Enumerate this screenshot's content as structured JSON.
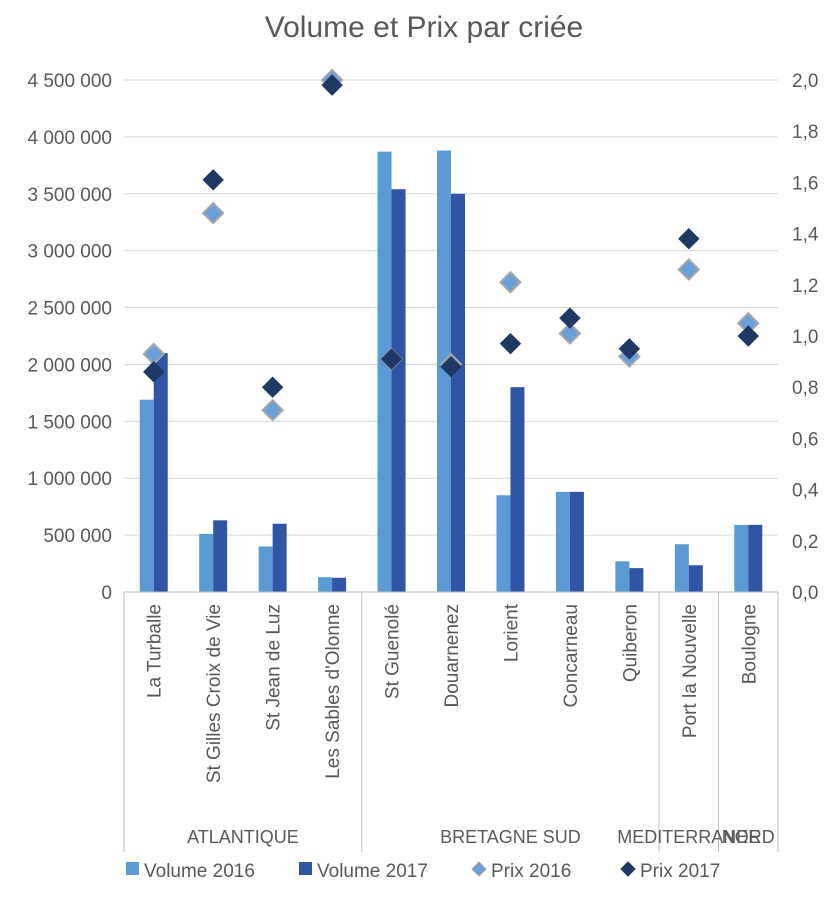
{
  "chart_data": {
    "type": "bar",
    "title": "Volume et Prix par criée",
    "categories": [
      "La Turballe",
      "St Gilles Croix de Vie",
      "St Jean de Luz",
      "Les Sables d'Olonne",
      "St Guenolé",
      "Douarnenez",
      "Lorient",
      "Concarneau",
      "Quiberon",
      "Port la Nouvelle",
      "Boulogne"
    ],
    "groups": [
      {
        "label": "ATLANTIQUE",
        "from": 0,
        "to": 3
      },
      {
        "label": "BRETAGNE SUD",
        "from": 4,
        "to": 8
      },
      {
        "label": "MEDITERRANEE",
        "from": 9,
        "to": 9
      },
      {
        "label": "NORD",
        "from": 10,
        "to": 10
      }
    ],
    "y_left": {
      "min": 0,
      "max": 4500000,
      "ticks": [
        0,
        500000,
        1000000,
        1500000,
        2000000,
        2500000,
        3000000,
        3500000,
        4000000,
        4500000
      ],
      "tick_labels": [
        "0",
        "500 000",
        "1 000 000",
        "1 500 000",
        "2 000 000",
        "2 500 000",
        "3 000 000",
        "3 500 000",
        "4 000 000",
        "4 500 000"
      ]
    },
    "y_right": {
      "min": 0,
      "max": 2.0,
      "ticks": [
        0,
        0.2,
        0.4,
        0.6,
        0.8,
        1.0,
        1.2,
        1.4,
        1.6,
        1.8,
        2.0
      ],
      "tick_labels": [
        "0,0",
        "0,2",
        "0,4",
        "0,6",
        "0,8",
        "1,0",
        "1,2",
        "1,4",
        "1,6",
        "1,8",
        "2,0"
      ]
    },
    "series": [
      {
        "name": "Volume 2016",
        "type": "bar",
        "axis": "left",
        "color": "#5b9bd5",
        "values": [
          1690000,
          510000,
          400000,
          130000,
          3870000,
          3880000,
          850000,
          880000,
          270000,
          420000,
          590000
        ]
      },
      {
        "name": "Volume 2017",
        "type": "bar",
        "axis": "left",
        "color": "#2f55a4",
        "values": [
          2100000,
          630000,
          600000,
          125000,
          3540000,
          3500000,
          1800000,
          880000,
          210000,
          235000,
          590000
        ]
      },
      {
        "name": "Prix 2016",
        "type": "scatter",
        "axis": "right",
        "color": "#6a9fd8",
        "marker": "diamond",
        "values": [
          0.93,
          1.48,
          0.71,
          2.0,
          0.91,
          0.89,
          1.21,
          1.01,
          0.92,
          1.26,
          1.05
        ]
      },
      {
        "name": "Prix 2017",
        "type": "scatter",
        "axis": "right",
        "color": "#1f3864",
        "marker": "diamond",
        "values": [
          0.86,
          1.61,
          0.8,
          1.98,
          0.91,
          0.88,
          0.97,
          1.07,
          0.95,
          1.38,
          1.0
        ]
      }
    ],
    "grid": true,
    "legend_position": "bottom"
  }
}
